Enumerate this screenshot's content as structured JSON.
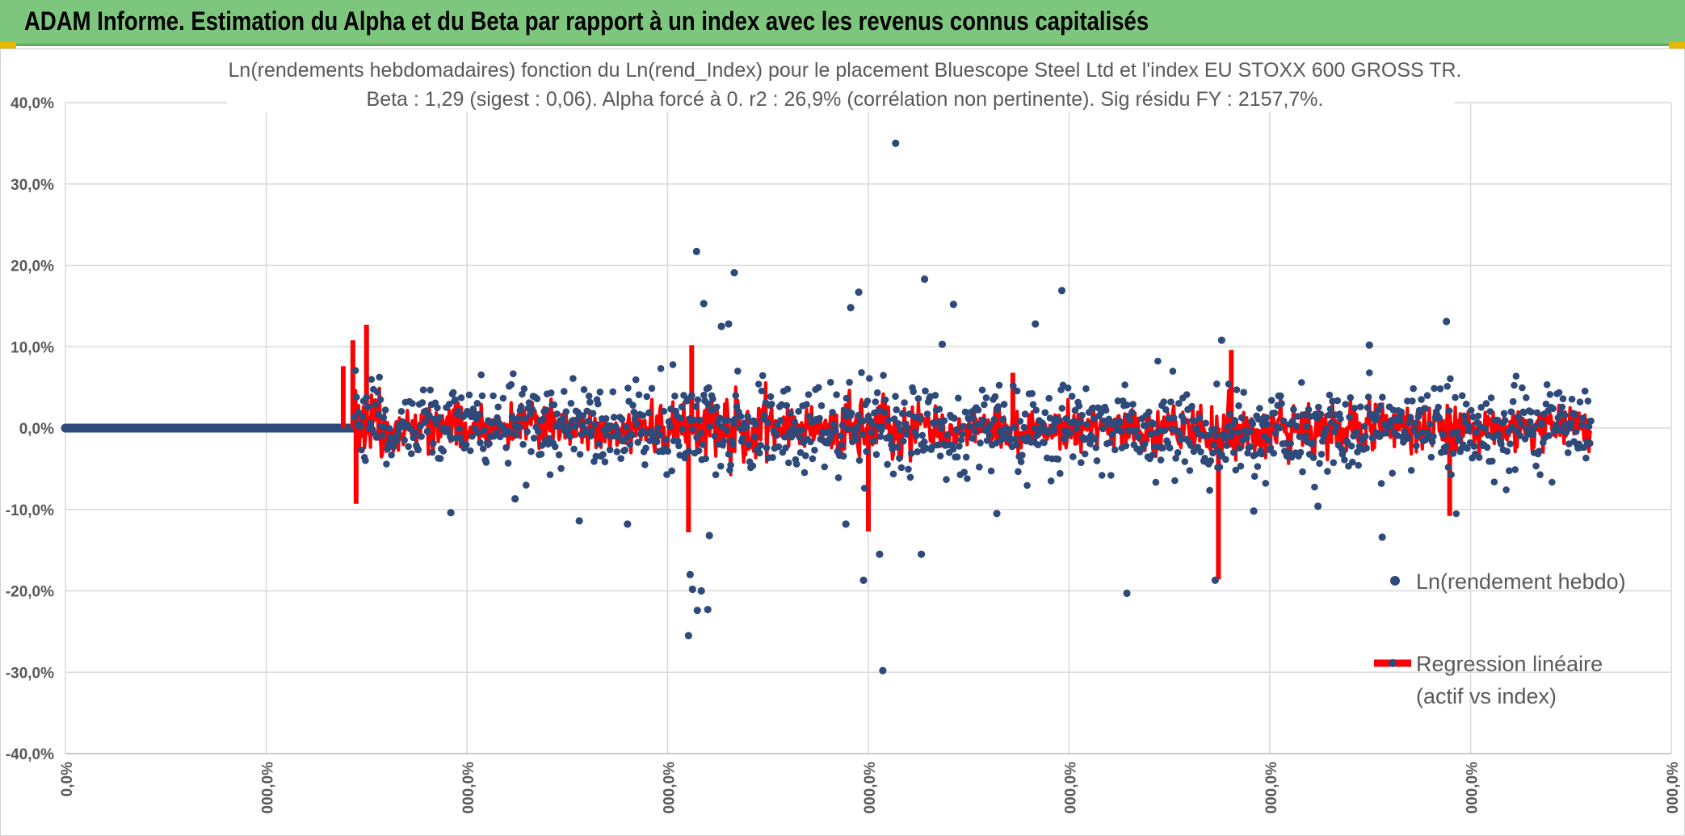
{
  "header": {
    "title": "ADAM Informe. Estimation du Alpha et du Beta par rapport à un index avec les revenus connus capitalisés"
  },
  "chart_data": {
    "type": "scatter",
    "title": "Ln(rendements hebdomadaires) fonction du Ln(rend_Index) pour le placement Bluescope Steel Ltd et l'index EU STOXX 600 GROSS TR.",
    "subtitle": "Beta : 1,29 (sigest : 0,06). Alpha forcé à 0. r2 : 26,9% (corrélation non pertinente). Sig résidu FY : 2157,7%.",
    "ylim": [
      -40,
      40
    ],
    "y_ticks": [
      "40,0%",
      "30,0%",
      "20,0%",
      "10,0%",
      "0,0%",
      "-10,0%",
      "-20,0%",
      "-30,0%",
      "-40,0%"
    ],
    "x_ticks": [
      "0,0%",
      "000,0%",
      "000,0%",
      "000,0%",
      "000,0%",
      "000,0%",
      "000,0%",
      "000,0%",
      "000,0%"
    ],
    "xlim": [
      0,
      2000
    ],
    "grid": true,
    "legend_position": "right",
    "series": [
      {
        "name": "Ln(rendement hebdo)",
        "kind": "points",
        "color": "#2e4a7a",
        "flat_segment": {
          "x_start": 0,
          "x_end": 360,
          "y": 0
        },
        "active_range": [
          360,
          1900
        ],
        "notable_points": [
          {
            "x": 776,
            "y": -25.5
          },
          {
            "x": 778,
            "y": -18
          },
          {
            "x": 781,
            "y": -19.8
          },
          {
            "x": 786,
            "y": 21.7
          },
          {
            "x": 787,
            "y": -22.4
          },
          {
            "x": 792,
            "y": -20
          },
          {
            "x": 795,
            "y": 15.3
          },
          {
            "x": 800,
            "y": -22.3
          },
          {
            "x": 802,
            "y": -13.2
          },
          {
            "x": 817,
            "y": 12.5
          },
          {
            "x": 826,
            "y": 12.8
          },
          {
            "x": 833,
            "y": 19.1
          },
          {
            "x": 972,
            "y": -11.8
          },
          {
            "x": 978,
            "y": 14.8
          },
          {
            "x": 988,
            "y": 16.7
          },
          {
            "x": 994,
            "y": -18.7
          },
          {
            "x": 1014,
            "y": -15.5
          },
          {
            "x": 1018,
            "y": -29.8
          },
          {
            "x": 1034,
            "y": 35
          },
          {
            "x": 1066,
            "y": -15.5
          },
          {
            "x": 1070,
            "y": 18.3
          },
          {
            "x": 1092,
            "y": 10.3
          },
          {
            "x": 1106,
            "y": 15.2
          },
          {
            "x": 1208,
            "y": 12.8
          },
          {
            "x": 1241,
            "y": 16.9
          },
          {
            "x": 1322,
            "y": -20.3
          },
          {
            "x": 1432,
            "y": -18.7
          },
          {
            "x": 1440,
            "y": 10.8
          },
          {
            "x": 1624,
            "y": 10.2
          },
          {
            "x": 1720,
            "y": 13.1
          },
          {
            "x": 480,
            "y": -10.4
          },
          {
            "x": 560,
            "y": -8.7
          },
          {
            "x": 640,
            "y": -11.4
          },
          {
            "x": 700,
            "y": -11.8
          },
          {
            "x": 1160,
            "y": -10.5
          },
          {
            "x": 1480,
            "y": -10.2
          },
          {
            "x": 1560,
            "y": -9.6
          },
          {
            "x": 1640,
            "y": -13.4
          }
        ]
      },
      {
        "name": "Regression linéaire (actif vs index)",
        "kind": "line",
        "color": "#ff0000",
        "beta": 1.29,
        "alpha": 0,
        "notable_spikes": [
          {
            "x": 375,
            "y": 12.7
          },
          {
            "x": 358,
            "y": 10.8
          },
          {
            "x": 346,
            "y": 7.6
          },
          {
            "x": 362,
            "y": -9.3
          },
          {
            "x": 780,
            "y": 10.2
          },
          {
            "x": 776,
            "y": -12.8
          },
          {
            "x": 1000,
            "y": -12.7
          },
          {
            "x": 1436,
            "y": -18.6
          },
          {
            "x": 1452,
            "y": 9.6
          },
          {
            "x": 1724,
            "y": -10.8
          },
          {
            "x": 1180,
            "y": 6.8
          }
        ]
      }
    ],
    "legend": [
      "Ln(rendement hebdo)",
      "Regression linéaire",
      "(actif vs index)"
    ]
  }
}
